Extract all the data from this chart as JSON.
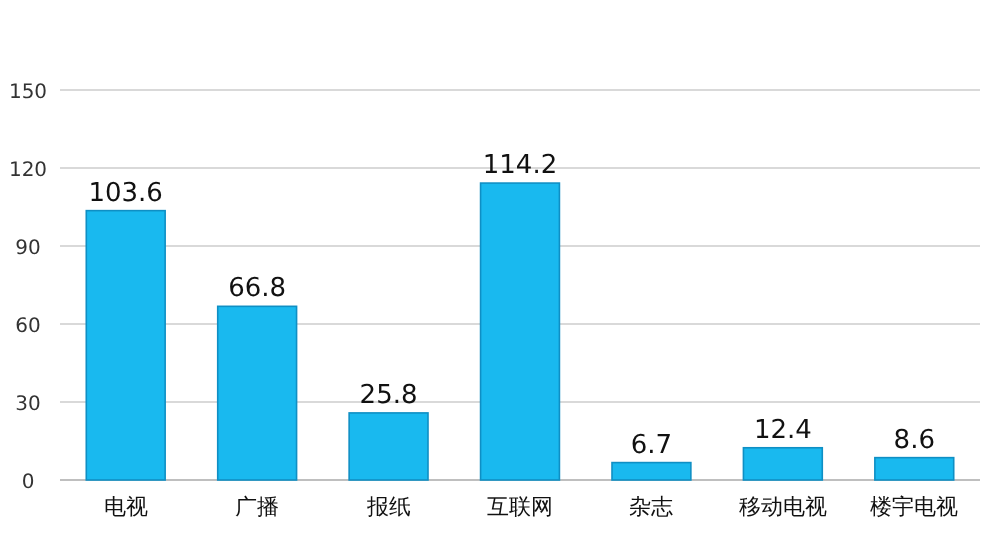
{
  "chart_data": {
    "type": "bar",
    "categories": [
      "电视",
      "广播",
      "报纸",
      "互联网",
      "杂志",
      "移动电视",
      "楼宇电视"
    ],
    "values": [
      103.6,
      66.8,
      25.8,
      114.2,
      6.7,
      12.4,
      8.6
    ],
    "color": "#19b9ef",
    "ylim": [
      0,
      150
    ],
    "yticks": [
      0,
      30,
      60,
      90,
      120,
      150
    ],
    "grid": "y",
    "data_labels": true
  }
}
